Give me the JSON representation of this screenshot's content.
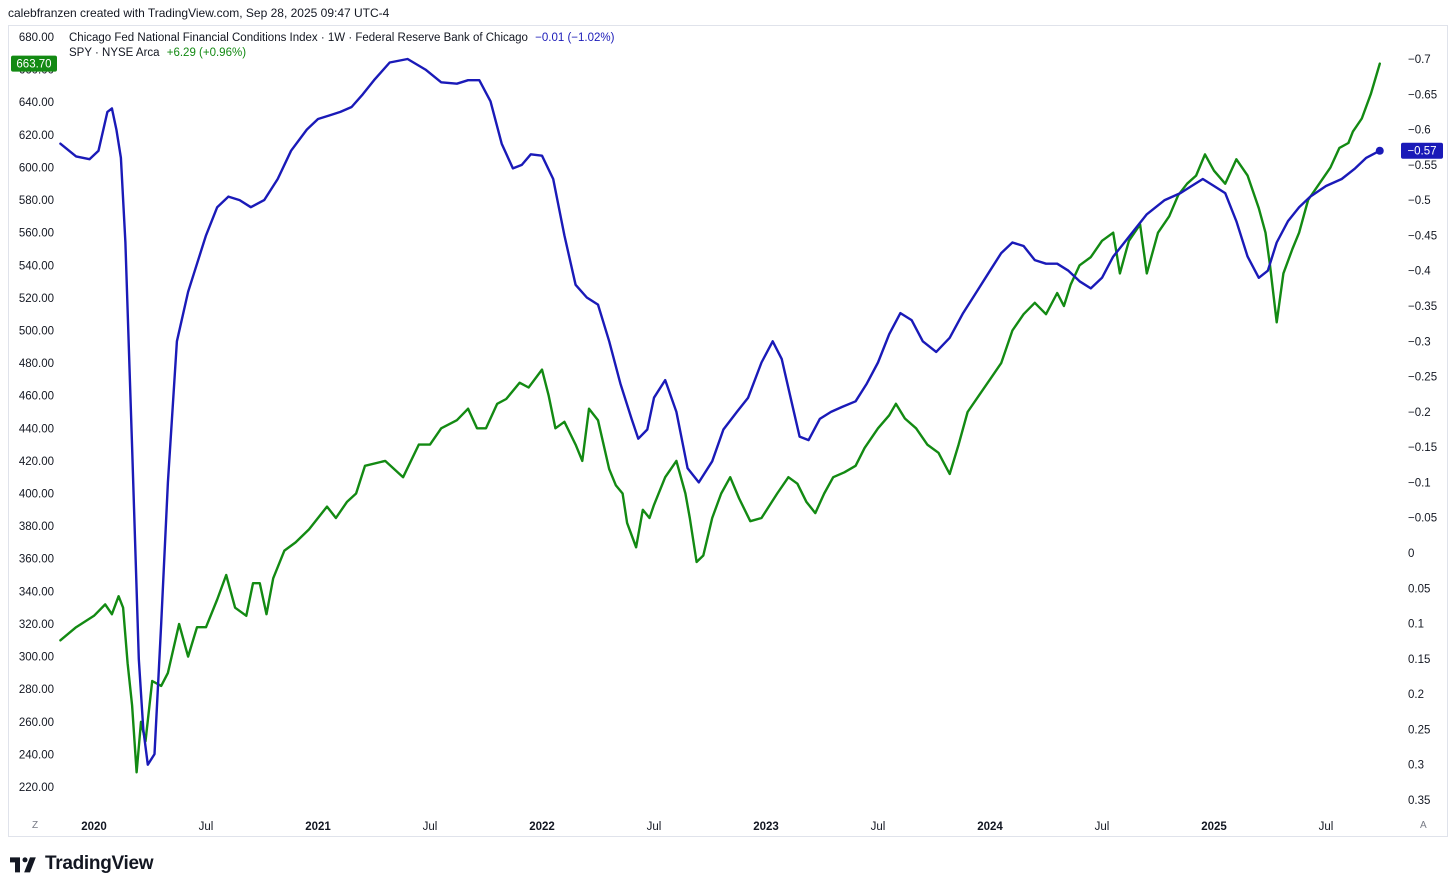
{
  "attribution": "calebfranzen created with TradingView.com, Sep 28, 2025 09:47 UTC-4",
  "legend": {
    "nfci": {
      "name": "Chicago Fed National Financial Conditions Index · 1W · Federal Reserve Bank of Chicago",
      "change": "−0.01 (−1.02%)"
    },
    "spy": {
      "name": "SPY · NYSE Arca",
      "change": "+6.29 (+0.96%)"
    }
  },
  "last_labels": {
    "spy": "663.70",
    "nfci": "−0.57"
  },
  "corner_buttons": {
    "left": "Z",
    "right": "A"
  },
  "brand": {
    "name": "TradingView"
  },
  "colors": {
    "spy": "#138a13",
    "nfci": "#1a1ab8",
    "axis_text": "#131722",
    "border": "#e0e3eb"
  },
  "chart_data": {
    "type": "line",
    "x_ticks": [
      {
        "label": "2020",
        "t": 2020.0,
        "bold": true
      },
      {
        "label": "Jul",
        "t": 2020.5,
        "bold": false
      },
      {
        "label": "2021",
        "t": 2021.0,
        "bold": true
      },
      {
        "label": "Jul",
        "t": 2021.5,
        "bold": false
      },
      {
        "label": "2022",
        "t": 2022.0,
        "bold": true
      },
      {
        "label": "Jul",
        "t": 2022.5,
        "bold": false
      },
      {
        "label": "2023",
        "t": 2023.0,
        "bold": true
      },
      {
        "label": "Jul",
        "t": 2023.5,
        "bold": false
      },
      {
        "label": "2024",
        "t": 2024.0,
        "bold": true
      },
      {
        "label": "Jul",
        "t": 2024.5,
        "bold": false
      },
      {
        "label": "2025",
        "t": 2025.0,
        "bold": true
      },
      {
        "label": "Jul",
        "t": 2025.5,
        "bold": false
      }
    ],
    "left_axis": {
      "ticks": [
        "680.00",
        "660.00",
        "640.00",
        "620.00",
        "600.00",
        "580.00",
        "560.00",
        "540.00",
        "520.00",
        "500.00",
        "480.00",
        "460.00",
        "440.00",
        "420.00",
        "400.00",
        "380.00",
        "360.00",
        "340.00",
        "320.00",
        "300.00",
        "280.00",
        "260.00",
        "240.00",
        "220.00"
      ],
      "range": [
        210,
        690
      ]
    },
    "right_axis": {
      "ticks": [
        "-0.7",
        "-0.65",
        "-0.6",
        "-0.55",
        "-0.5",
        "-0.45",
        "-0.4",
        "-0.35",
        "-0.3",
        "-0.25",
        "-0.2",
        "-0.15",
        "-0.1",
        "-0.05",
        "0",
        "0.05",
        "0.1",
        "0.15",
        "0.2",
        "0.25",
        "0.3",
        "0.35"
      ],
      "inverted": true
    },
    "series": [
      {
        "name": "SPY · NYSE Arca",
        "axis": "left",
        "points": [
          [
            2019.85,
            310
          ],
          [
            2019.92,
            318
          ],
          [
            2020.0,
            325
          ],
          [
            2020.05,
            332
          ],
          [
            2020.08,
            326
          ],
          [
            2020.11,
            337
          ],
          [
            2020.13,
            330
          ],
          [
            2020.15,
            296
          ],
          [
            2020.17,
            270
          ],
          [
            2020.19,
            229
          ],
          [
            2020.21,
            260
          ],
          [
            2020.23,
            248
          ],
          [
            2020.26,
            285
          ],
          [
            2020.3,
            282
          ],
          [
            2020.33,
            290
          ],
          [
            2020.38,
            320
          ],
          [
            2020.42,
            300
          ],
          [
            2020.46,
            318
          ],
          [
            2020.5,
            318
          ],
          [
            2020.55,
            335
          ],
          [
            2020.59,
            350
          ],
          [
            2020.63,
            330
          ],
          [
            2020.68,
            325
          ],
          [
            2020.71,
            345
          ],
          [
            2020.74,
            345
          ],
          [
            2020.77,
            326
          ],
          [
            2020.8,
            348
          ],
          [
            2020.85,
            365
          ],
          [
            2020.9,
            370
          ],
          [
            2020.96,
            378
          ],
          [
            2021.04,
            392
          ],
          [
            2021.08,
            385
          ],
          [
            2021.13,
            395
          ],
          [
            2021.17,
            400
          ],
          [
            2021.21,
            417
          ],
          [
            2021.3,
            420
          ],
          [
            2021.38,
            410
          ],
          [
            2021.45,
            430
          ],
          [
            2021.5,
            430
          ],
          [
            2021.55,
            440
          ],
          [
            2021.62,
            445
          ],
          [
            2021.67,
            452
          ],
          [
            2021.71,
            440
          ],
          [
            2021.75,
            440
          ],
          [
            2021.8,
            455
          ],
          [
            2021.84,
            458
          ],
          [
            2021.9,
            468
          ],
          [
            2021.94,
            465
          ],
          [
            2022.0,
            476
          ],
          [
            2022.03,
            460
          ],
          [
            2022.06,
            440
          ],
          [
            2022.1,
            444
          ],
          [
            2022.15,
            430
          ],
          [
            2022.18,
            420
          ],
          [
            2022.21,
            452
          ],
          [
            2022.25,
            445
          ],
          [
            2022.3,
            415
          ],
          [
            2022.33,
            405
          ],
          [
            2022.36,
            400
          ],
          [
            2022.38,
            382
          ],
          [
            2022.42,
            367
          ],
          [
            2022.45,
            390
          ],
          [
            2022.48,
            385
          ],
          [
            2022.5,
            393
          ],
          [
            2022.55,
            410
          ],
          [
            2022.6,
            420
          ],
          [
            2022.64,
            400
          ],
          [
            2022.66,
            385
          ],
          [
            2022.69,
            358
          ],
          [
            2022.72,
            362
          ],
          [
            2022.76,
            385
          ],
          [
            2022.8,
            400
          ],
          [
            2022.84,
            410
          ],
          [
            2022.88,
            397
          ],
          [
            2022.93,
            383
          ],
          [
            2022.98,
            385
          ],
          [
            2023.05,
            400
          ],
          [
            2023.1,
            410
          ],
          [
            2023.14,
            406
          ],
          [
            2023.18,
            395
          ],
          [
            2023.22,
            388
          ],
          [
            2023.26,
            400
          ],
          [
            2023.3,
            410
          ],
          [
            2023.35,
            413
          ],
          [
            2023.4,
            417
          ],
          [
            2023.44,
            428
          ],
          [
            2023.5,
            440
          ],
          [
            2023.55,
            448
          ],
          [
            2023.58,
            455
          ],
          [
            2023.62,
            446
          ],
          [
            2023.67,
            440
          ],
          [
            2023.72,
            430
          ],
          [
            2023.77,
            425
          ],
          [
            2023.82,
            412
          ],
          [
            2023.86,
            430
          ],
          [
            2023.9,
            450
          ],
          [
            2023.95,
            460
          ],
          [
            2024.0,
            470
          ],
          [
            2024.05,
            480
          ],
          [
            2024.1,
            500
          ],
          [
            2024.15,
            510
          ],
          [
            2024.2,
            517
          ],
          [
            2024.25,
            510
          ],
          [
            2024.3,
            523
          ],
          [
            2024.33,
            515
          ],
          [
            2024.36,
            528
          ],
          [
            2024.4,
            540
          ],
          [
            2024.45,
            545
          ],
          [
            2024.5,
            555
          ],
          [
            2024.55,
            560
          ],
          [
            2024.58,
            535
          ],
          [
            2024.62,
            555
          ],
          [
            2024.67,
            565
          ],
          [
            2024.7,
            535
          ],
          [
            2024.75,
            560
          ],
          [
            2024.8,
            570
          ],
          [
            2024.84,
            583
          ],
          [
            2024.88,
            590
          ],
          [
            2024.92,
            595
          ],
          [
            2024.96,
            608
          ],
          [
            2025.0,
            598
          ],
          [
            2025.05,
            590
          ],
          [
            2025.1,
            605
          ],
          [
            2025.15,
            595
          ],
          [
            2025.2,
            575
          ],
          [
            2025.23,
            560
          ],
          [
            2025.25,
            540
          ],
          [
            2025.28,
            505
          ],
          [
            2025.31,
            535
          ],
          [
            2025.35,
            550
          ],
          [
            2025.38,
            560
          ],
          [
            2025.42,
            580
          ],
          [
            2025.47,
            590
          ],
          [
            2025.52,
            600
          ],
          [
            2025.56,
            612
          ],
          [
            2025.6,
            615
          ],
          [
            2025.62,
            622
          ],
          [
            2025.66,
            630
          ],
          [
            2025.7,
            645
          ],
          [
            2025.74,
            663.7
          ]
        ]
      },
      {
        "name": "Chicago Fed National Financial Conditions Index",
        "axis": "right",
        "points": [
          [
            2019.85,
            -0.58
          ],
          [
            2019.92,
            -0.562
          ],
          [
            2019.98,
            -0.558
          ],
          [
            2020.02,
            -0.57
          ],
          [
            2020.06,
            -0.625
          ],
          [
            2020.08,
            -0.63
          ],
          [
            2020.1,
            -0.6
          ],
          [
            2020.12,
            -0.56
          ],
          [
            2020.14,
            -0.44
          ],
          [
            2020.17,
            -0.15
          ],
          [
            2020.2,
            0.15
          ],
          [
            2020.22,
            0.25
          ],
          [
            2020.24,
            0.3
          ],
          [
            2020.27,
            0.285
          ],
          [
            2020.3,
            0.1
          ],
          [
            2020.33,
            -0.1
          ],
          [
            2020.37,
            -0.3
          ],
          [
            2020.42,
            -0.37
          ],
          [
            2020.45,
            -0.4
          ],
          [
            2020.5,
            -0.45
          ],
          [
            2020.55,
            -0.49
          ],
          [
            2020.6,
            -0.505
          ],
          [
            2020.65,
            -0.5
          ],
          [
            2020.7,
            -0.49
          ],
          [
            2020.76,
            -0.5
          ],
          [
            2020.82,
            -0.53
          ],
          [
            2020.88,
            -0.57
          ],
          [
            2020.95,
            -0.6
          ],
          [
            2021.0,
            -0.615
          ],
          [
            2021.05,
            -0.62
          ],
          [
            2021.1,
            -0.625
          ],
          [
            2021.15,
            -0.632
          ],
          [
            2021.2,
            -0.65
          ],
          [
            2021.25,
            -0.67
          ],
          [
            2021.32,
            -0.695
          ],
          [
            2021.4,
            -0.7
          ],
          [
            2021.48,
            -0.685
          ],
          [
            2021.55,
            -0.667
          ],
          [
            2021.62,
            -0.665
          ],
          [
            2021.67,
            -0.67
          ],
          [
            2021.72,
            -0.67
          ],
          [
            2021.77,
            -0.64
          ],
          [
            2021.82,
            -0.58
          ],
          [
            2021.87,
            -0.545
          ],
          [
            2021.91,
            -0.55
          ],
          [
            2021.95,
            -0.565
          ],
          [
            2022.0,
            -0.563
          ],
          [
            2022.05,
            -0.53
          ],
          [
            2022.1,
            -0.45
          ],
          [
            2022.15,
            -0.38
          ],
          [
            2022.2,
            -0.362
          ],
          [
            2022.25,
            -0.352
          ],
          [
            2022.3,
            -0.3
          ],
          [
            2022.35,
            -0.24
          ],
          [
            2022.4,
            -0.19
          ],
          [
            2022.43,
            -0.162
          ],
          [
            2022.47,
            -0.175
          ],
          [
            2022.5,
            -0.22
          ],
          [
            2022.55,
            -0.245
          ],
          [
            2022.6,
            -0.2
          ],
          [
            2022.65,
            -0.12
          ],
          [
            2022.7,
            -0.1
          ],
          [
            2022.76,
            -0.13
          ],
          [
            2022.81,
            -0.175
          ],
          [
            2022.87,
            -0.2
          ],
          [
            2022.92,
            -0.22
          ],
          [
            2022.98,
            -0.27
          ],
          [
            2023.03,
            -0.3
          ],
          [
            2023.07,
            -0.275
          ],
          [
            2023.11,
            -0.22
          ],
          [
            2023.15,
            -0.165
          ],
          [
            2023.19,
            -0.16
          ],
          [
            2023.24,
            -0.19
          ],
          [
            2023.29,
            -0.2
          ],
          [
            2023.34,
            -0.207
          ],
          [
            2023.4,
            -0.215
          ],
          [
            2023.45,
            -0.24
          ],
          [
            2023.5,
            -0.27
          ],
          [
            2023.55,
            -0.31
          ],
          [
            2023.6,
            -0.34
          ],
          [
            2023.65,
            -0.33
          ],
          [
            2023.7,
            -0.3
          ],
          [
            2023.76,
            -0.285
          ],
          [
            2023.82,
            -0.305
          ],
          [
            2023.88,
            -0.34
          ],
          [
            2023.94,
            -0.37
          ],
          [
            2024.0,
            -0.4
          ],
          [
            2024.05,
            -0.425
          ],
          [
            2024.1,
            -0.44
          ],
          [
            2024.15,
            -0.435
          ],
          [
            2024.2,
            -0.415
          ],
          [
            2024.25,
            -0.41
          ],
          [
            2024.3,
            -0.41
          ],
          [
            2024.35,
            -0.4
          ],
          [
            2024.4,
            -0.385
          ],
          [
            2024.45,
            -0.375
          ],
          [
            2024.5,
            -0.39
          ],
          [
            2024.55,
            -0.42
          ],
          [
            2024.6,
            -0.44
          ],
          [
            2024.65,
            -0.46
          ],
          [
            2024.7,
            -0.48
          ],
          [
            2024.78,
            -0.5
          ],
          [
            2024.85,
            -0.51
          ],
          [
            2024.9,
            -0.52
          ],
          [
            2024.95,
            -0.53
          ],
          [
            2025.0,
            -0.52
          ],
          [
            2025.05,
            -0.51
          ],
          [
            2025.1,
            -0.47
          ],
          [
            2025.15,
            -0.42
          ],
          [
            2025.2,
            -0.39
          ],
          [
            2025.24,
            -0.4
          ],
          [
            2025.28,
            -0.44
          ],
          [
            2025.33,
            -0.47
          ],
          [
            2025.38,
            -0.49
          ],
          [
            2025.43,
            -0.505
          ],
          [
            2025.5,
            -0.52
          ],
          [
            2025.57,
            -0.53
          ],
          [
            2025.63,
            -0.545
          ],
          [
            2025.68,
            -0.56
          ],
          [
            2025.74,
            -0.57
          ]
        ]
      }
    ]
  }
}
